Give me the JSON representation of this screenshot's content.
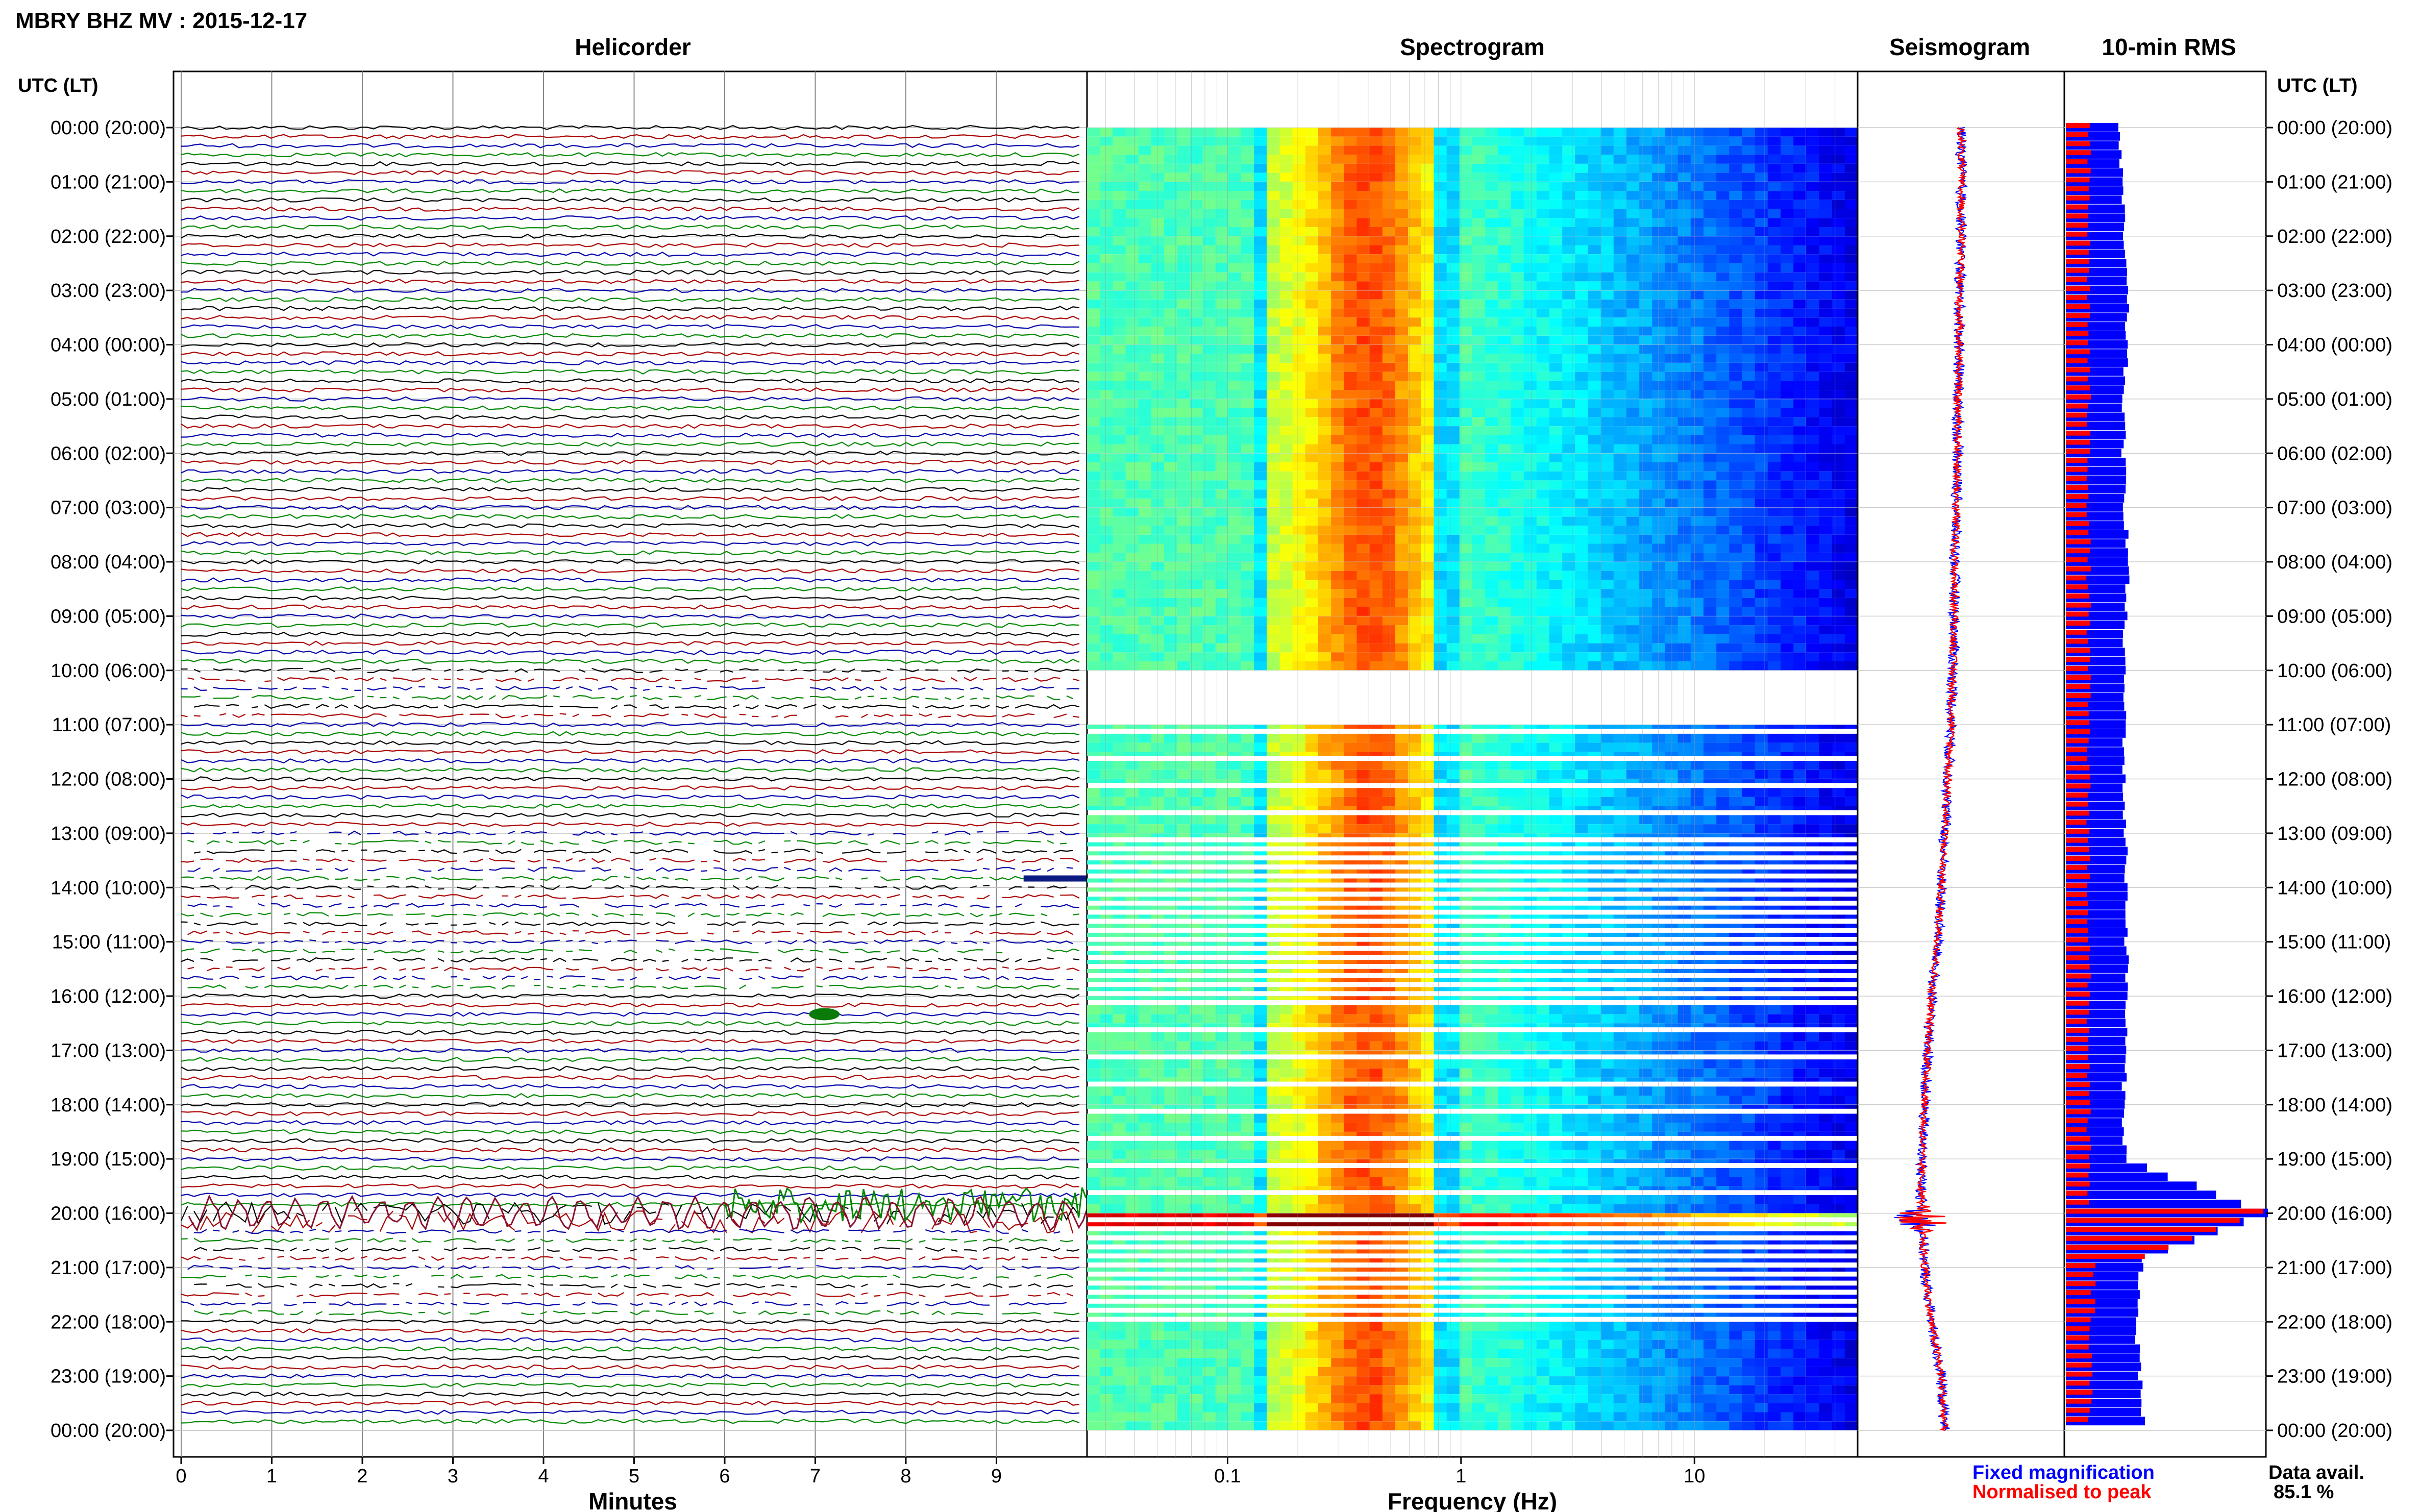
{
  "header": {
    "title": "MBRY BHZ MV : 2015-12-17"
  },
  "panels": {
    "helicorder": "Helicorder",
    "spectrogram": "Spectrogram",
    "seismogram": "Seismogram",
    "rms": "10-min RMS"
  },
  "axis": {
    "time_label_left": "UTC (LT)",
    "time_label_right": "UTC (LT)",
    "xlabel_helicorder": "Minutes",
    "xlabel_spectrogram": "Frequency (Hz)"
  },
  "legend": {
    "fixed": "Fixed magnification",
    "normalised": "Normalised to peak",
    "fixed_color": "#0000ff",
    "normalised_color": "#ff0000"
  },
  "data_avail": {
    "label": "Data avail.",
    "value": "85.1 %"
  },
  "colors": {
    "trace": [
      "#000000",
      "#aa0000",
      "#0000aa",
      "#008800"
    ],
    "spec_cold": "#00008b",
    "spec_warm": "#ffff00",
    "spec_hot": "#ff0000"
  },
  "chart_data": [
    {
      "type": "line",
      "name": "helicorder",
      "xlabel": "Minutes",
      "x_ticks": [
        "0",
        "1",
        "2",
        "3",
        "4",
        "5",
        "6",
        "7",
        "8",
        "9"
      ],
      "xlim": [
        0,
        10
      ],
      "y_ticks": [
        "00:00 (20:00)",
        "01:00 (21:00)",
        "02:00 (22:00)",
        "03:00 (23:00)",
        "04:00 (00:00)",
        "05:00 (01:00)",
        "06:00 (02:00)",
        "07:00 (03:00)",
        "08:00 (04:00)",
        "09:00 (05:00)",
        "10:00 (06:00)",
        "11:00 (07:00)",
        "12:00 (08:00)",
        "13:00 (09:00)",
        "14:00 (10:00)",
        "15:00 (11:00)",
        "16:00 (12:00)",
        "17:00 (13:00)",
        "18:00 (14:00)",
        "19:00 (15:00)",
        "20:00 (16:00)",
        "21:00 (17:00)",
        "22:00 (18:00)",
        "23:00 (19:00)",
        "00:00 (20:00)"
      ],
      "lines_per_hour": 6,
      "events": [
        {
          "time": "13:50",
          "minute": 9.3,
          "note": "dense blue burst"
        },
        {
          "time": "16:20",
          "minute": 7.1,
          "note": "small green event"
        },
        {
          "time": "19:50",
          "minute": 6.0,
          "note": "large green event"
        },
        {
          "time": "20:00",
          "minute": 0.0,
          "note": "large oscillations"
        }
      ]
    },
    {
      "type": "heatmap",
      "name": "spectrogram",
      "xlabel": "Frequency (Hz)",
      "x_scale": "log",
      "x_ticks": [
        "0.1",
        "1",
        "10"
      ],
      "xlim": [
        0.025,
        50
      ],
      "peak_band_hz": [
        0.15,
        0.8
      ],
      "strong_event_time": "20:00"
    },
    {
      "type": "line",
      "name": "seismogram",
      "baseline_offset_by_hour": [
        0,
        0,
        0,
        -0.5,
        -0.5,
        -1,
        -1,
        -1.5,
        -2,
        -2,
        -2.5,
        -3,
        -4,
        -5,
        -6,
        -7,
        -9,
        -10,
        -11,
        -12,
        -12,
        -11,
        -9,
        -6,
        -5
      ],
      "event_time": "20:00"
    },
    {
      "type": "bar",
      "name": "10-min RMS",
      "orientation": "horizontal",
      "series": [
        {
          "name": "Fixed magnification",
          "color": "#0000ff",
          "values_by_hour": [
            3.5,
            3.7,
            3.8,
            4.0,
            4.0,
            3.8,
            3.8,
            3.9,
            4.1,
            3.9,
            3.8,
            3.9,
            3.8,
            3.9,
            4.0,
            4.0,
            4.0,
            3.9,
            3.8,
            3.9,
            13.0,
            5.0,
            4.6,
            4.8,
            5.2
          ]
        },
        {
          "name": "Normalised to peak",
          "color": "#ff0000",
          "values_by_hour": [
            1.5,
            1.5,
            1.5,
            1.5,
            1.5,
            1.5,
            1.5,
            1.5,
            1.5,
            1.5,
            1.5,
            1.5,
            1.5,
            1.5,
            1.5,
            1.5,
            1.5,
            1.5,
            1.5,
            1.5,
            13.0,
            1.8,
            1.6,
            1.6,
            1.6
          ]
        }
      ],
      "max": 13.0
    }
  ]
}
